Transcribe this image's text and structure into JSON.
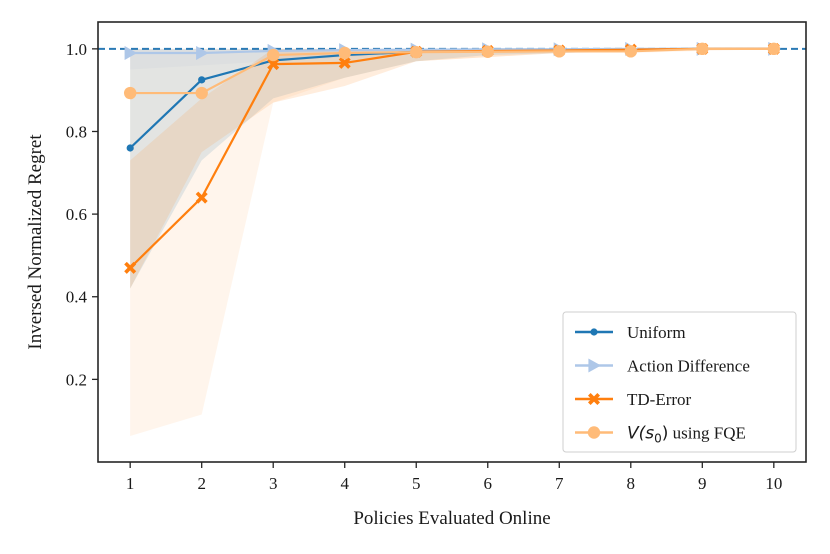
{
  "chart_data": {
    "type": "line",
    "xlabel": "Policies Evaluated Online",
    "ylabel": "Inversed Normalized Regret",
    "x": [
      1,
      2,
      3,
      4,
      5,
      6,
      7,
      8,
      9,
      10
    ],
    "xlim": [
      0.55,
      10.45
    ],
    "ylim": [
      0.0,
      1.065
    ],
    "xticks": [
      "1",
      "2",
      "3",
      "4",
      "5",
      "6",
      "7",
      "8",
      "9",
      "10"
    ],
    "yticks": [
      "0.2",
      "0.4",
      "0.6",
      "0.8",
      "1.0"
    ],
    "reference_line": {
      "y": 1.0,
      "style": "dashed",
      "color": "#2a7ab5"
    },
    "legend": {
      "placement": "lower-right"
    },
    "grid": false,
    "series": [
      {
        "name": "Uniform",
        "color": "#1f77b4",
        "marker": "dot",
        "values": [
          0.76,
          0.925,
          0.972,
          0.985,
          0.993,
          0.996,
          0.998,
          0.999,
          1.0,
          1.0
        ],
        "band_lower": [
          0.42,
          0.73,
          0.88,
          0.93,
          0.97,
          0.985,
          0.99,
          0.995,
          0.998,
          0.999
        ],
        "band_upper": [
          1.0,
          1.0,
          1.0,
          1.0,
          1.0,
          1.0,
          1.0,
          1.0,
          1.0,
          1.0
        ]
      },
      {
        "name": "Action Difference",
        "color": "#aec7e8",
        "marker": "triangle-right",
        "values": [
          0.99,
          0.99,
          0.995,
          0.997,
          0.998,
          0.999,
          0.999,
          1.0,
          1.0,
          1.0
        ],
        "band_lower": [
          0.95,
          0.96,
          0.97,
          0.98,
          0.99,
          0.995,
          0.997,
          0.998,
          0.999,
          1.0
        ],
        "band_upper": [
          1.0,
          1.0,
          1.0,
          1.0,
          1.0,
          1.0,
          1.0,
          1.0,
          1.0,
          1.0
        ]
      },
      {
        "name": "TD-Error",
        "color": "#ff7f0e",
        "marker": "x",
        "values": [
          0.47,
          0.64,
          0.963,
          0.966,
          0.993,
          0.995,
          0.996,
          0.998,
          1.0,
          1.0
        ],
        "band_lower": [
          0.42,
          0.75,
          0.87,
          0.91,
          0.97,
          0.98,
          0.99,
          0.995,
          0.998,
          0.999
        ],
        "band_upper": [
          0.73,
          0.88,
          1.0,
          1.0,
          1.0,
          1.0,
          1.0,
          1.0,
          1.0,
          1.0
        ]
      },
      {
        "name": "$V(s_0)$ using FQE",
        "label_math": "V(s",
        "label_sub": "0",
        "label_rest": ")",
        "label_text": " using FQE",
        "color": "#ffbb78",
        "marker": "circle",
        "values": [
          0.893,
          0.893,
          0.985,
          0.99,
          0.992,
          0.993,
          0.994,
          0.994,
          1.0,
          1.0
        ],
        "band_lower": [
          0.063,
          0.115,
          0.87,
          0.93,
          0.97,
          0.98,
          0.99,
          0.99,
          0.995,
          0.999
        ],
        "band_upper": [
          1.0,
          1.0,
          1.0,
          1.0,
          1.0,
          1.0,
          1.0,
          1.0,
          1.0,
          1.0
        ]
      }
    ]
  }
}
